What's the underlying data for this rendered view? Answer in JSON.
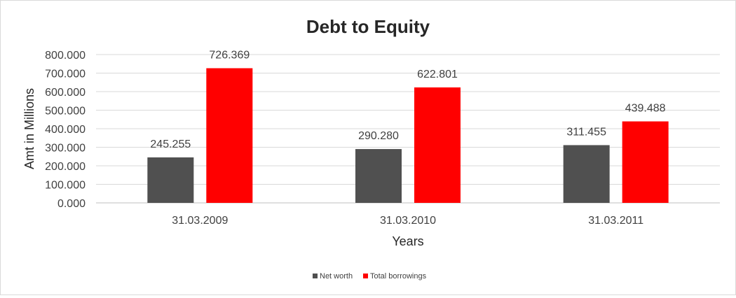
{
  "chart_data": {
    "type": "bar",
    "title": "Debt to Equity",
    "xlabel": "Years",
    "ylabel": "Amt in Millions",
    "categories": [
      "31.03.2009",
      "31.03.2010",
      "31.03.2011"
    ],
    "series": [
      {
        "name": "Net worth",
        "values": [
          245.255,
          290.28,
          311.455
        ],
        "color": "#505050"
      },
      {
        "name": "Total borrowings",
        "values": [
          726.369,
          622.801,
          439.488
        ],
        "color": "#ff0000"
      }
    ],
    "data_labels": [
      [
        "245.255",
        "290.280",
        "311.455"
      ],
      [
        "726.369",
        "622.801",
        "439.488"
      ]
    ],
    "ylim": [
      0,
      800
    ],
    "yticks": [
      0,
      100,
      200,
      300,
      400,
      500,
      600,
      700,
      800
    ],
    "ytick_labels": [
      "0.000",
      "100.000",
      "200.000",
      "300.000",
      "400.000",
      "500.000",
      "600.000",
      "700.000",
      "800.000"
    ],
    "grid": true,
    "legend": "bottom"
  }
}
